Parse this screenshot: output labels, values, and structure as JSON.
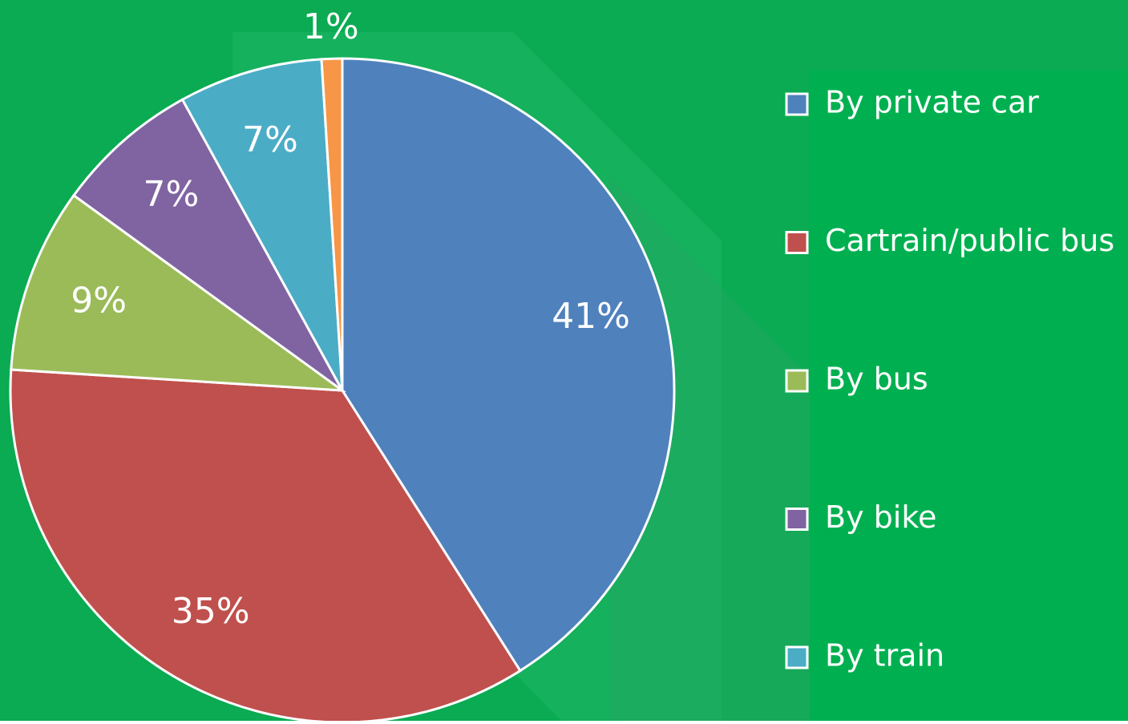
{
  "chart_data": {
    "type": "pie",
    "categories": [
      "By private car",
      "Cartrain/public bus",
      "By bus",
      "By bike",
      "By train",
      null
    ],
    "values": [
      41,
      35,
      9,
      7,
      7,
      1
    ],
    "value_labels": [
      "41%",
      "35%",
      "9%",
      "7%",
      "7%",
      "1%"
    ],
    "colors": [
      "#4f81bd",
      "#c0504d",
      "#9bbb59",
      "#8064a2",
      "#4bacc6",
      "#f79646"
    ],
    "legend": "right"
  }
}
